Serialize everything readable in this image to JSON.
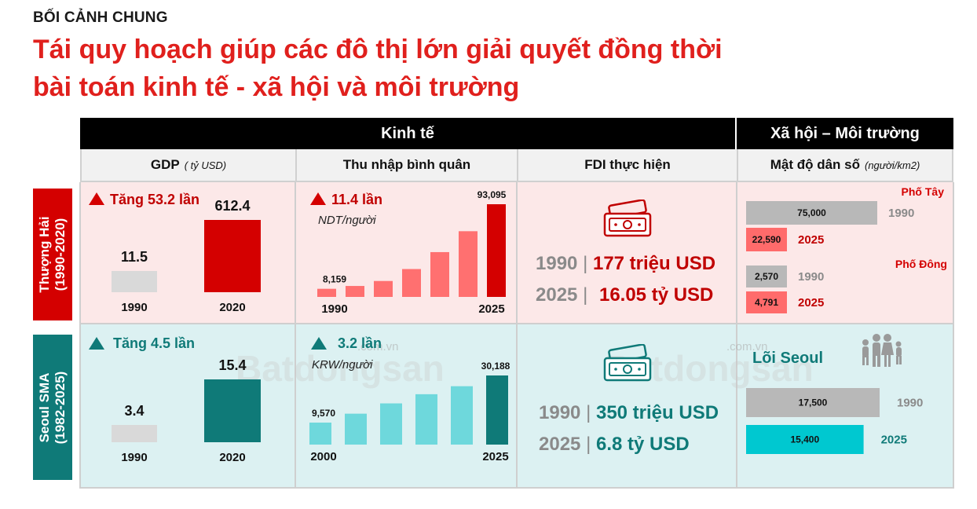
{
  "header": {
    "kicker": "BỐI CẢNH CHUNG",
    "title_line1": "Tái quy hoạch giúp các đô thị lớn giải quyết đồng thời",
    "title_line2": "bài toán kinh tế - xã hội và môi trường"
  },
  "table": {
    "group_economy": "Kinh tế",
    "group_society": "Xã hội – Môi trường",
    "col_gdp": "GDP",
    "col_gdp_unit": "( tỷ USD)",
    "col_income": "Thu nhập bình quân",
    "col_fdi": "FDI thực hiện",
    "col_density": "Mật độ dân số",
    "col_density_unit": "(người/km2)"
  },
  "rows": {
    "shanghai": {
      "name": "Thượng Hải",
      "period": "(1990-2020)",
      "color": "#d40000",
      "light": "#fce8e8"
    },
    "seoul": {
      "name": "Seoul SMA",
      "period": "(1982-2025)",
      "color": "#0f7a78",
      "light": "#dcf1f2"
    }
  },
  "watermark": {
    "brand": "Batdongsan",
    "domain": ".com.vn"
  },
  "chart_data": [
    {
      "type": "bar",
      "panel": "shanghai-gdp",
      "growth_label": "Tăng 53.2 lần",
      "categories": [
        "1990",
        "2020"
      ],
      "values": [
        11.5,
        612.4
      ],
      "value_labels": [
        "11.5",
        "612.4"
      ],
      "colors": [
        "#d9d9d9",
        "#d40000"
      ]
    },
    {
      "type": "bar",
      "panel": "shanghai-income",
      "growth_label": "11.4 lần",
      "unit_label": "NDT/người",
      "x_start": "1990",
      "x_end": "2025",
      "values": [
        8159,
        11000,
        16000,
        28000,
        45000,
        66000,
        93095
      ],
      "first_label": "8,159",
      "last_label": "93,095",
      "colors": [
        "#ff7070",
        "#ff7070",
        "#ff7070",
        "#ff7070",
        "#ff7070",
        "#ff7070",
        "#d40000"
      ]
    },
    {
      "type": "table",
      "panel": "shanghai-fdi",
      "rows": [
        {
          "year": "1990",
          "sep": "|",
          "value": "177 triệu USD"
        },
        {
          "year": "2025",
          "sep": "|",
          "value": "16.05 tỷ USD"
        }
      ],
      "value_color": "#c00000"
    },
    {
      "type": "bar",
      "panel": "shanghai-density",
      "groups": [
        {
          "name": "Phố Tây",
          "items": [
            {
              "year": "1990",
              "value": 75000,
              "label": "75,000",
              "color": "#b8b8b8"
            },
            {
              "year": "2025",
              "value": 22590,
              "label": "22,590",
              "color": "#ff6b6b"
            }
          ]
        },
        {
          "name": "Phố Đông",
          "items": [
            {
              "year": "1990",
              "value": 2570,
              "label": "2,570",
              "color": "#b8b8b8"
            },
            {
              "year": "2025",
              "value": 4791,
              "label": "4,791",
              "color": "#ff6b6b"
            }
          ]
        }
      ]
    },
    {
      "type": "bar",
      "panel": "seoul-gdp",
      "growth_label": "Tăng 4.5 lần",
      "categories": [
        "1990",
        "2020"
      ],
      "values": [
        3.4,
        15.4
      ],
      "value_labels": [
        "3.4",
        "15.4"
      ],
      "colors": [
        "#d9d9d9",
        "#0f7a78"
      ]
    },
    {
      "type": "bar",
      "panel": "seoul-income",
      "growth_label": "3.2 lần",
      "unit_label": "KRW/người",
      "x_start": "2000",
      "x_end": "2025",
      "values": [
        9570,
        13500,
        18000,
        22000,
        25500,
        30188
      ],
      "first_label": "9,570",
      "last_label": "30,188",
      "colors": [
        "#6ed8dc",
        "#6ed8dc",
        "#6ed8dc",
        "#6ed8dc",
        "#6ed8dc",
        "#0f7a78"
      ]
    },
    {
      "type": "table",
      "panel": "seoul-fdi",
      "rows": [
        {
          "year": "1990",
          "sep": "|",
          "value": "350 triệu USD"
        },
        {
          "year": "2025",
          "sep": "|",
          "value": "6.8 tỷ USD"
        }
      ],
      "value_color": "#0f7a78"
    },
    {
      "type": "bar",
      "panel": "seoul-density",
      "groups": [
        {
          "name": "Lõi Seoul",
          "items": [
            {
              "year": "1990",
              "value": 17500,
              "label": "17,500",
              "color": "#b8b8b8"
            },
            {
              "year": "2025",
              "value": 15400,
              "label": "15,400",
              "color": "#00c8d0"
            }
          ]
        }
      ]
    }
  ]
}
